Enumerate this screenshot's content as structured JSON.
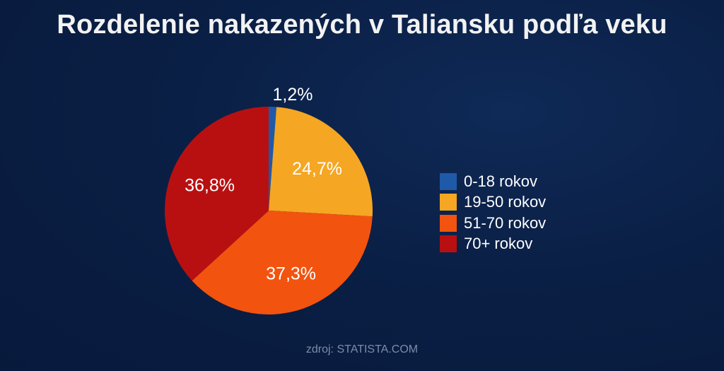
{
  "chart_data": {
    "type": "pie",
    "title": "Rozdelenie nakazených v Taliansku podľa veku",
    "slices": [
      {
        "label": "0-18 rokov",
        "value": 1.2,
        "display": "1,2%",
        "color": "#1f5aa8"
      },
      {
        "label": "19-50 rokov",
        "value": 24.7,
        "display": "24,7%",
        "color": "#f5a623"
      },
      {
        "label": "51-70 rokov",
        "value": 37.3,
        "display": "37,3%",
        "color": "#f2530f"
      },
      {
        "label": "70+ rokov",
        "value": 36.8,
        "display": "36,8%",
        "color": "#b81011"
      }
    ],
    "legend_position": "right",
    "source": "zdroj: STATISTA.COM"
  }
}
